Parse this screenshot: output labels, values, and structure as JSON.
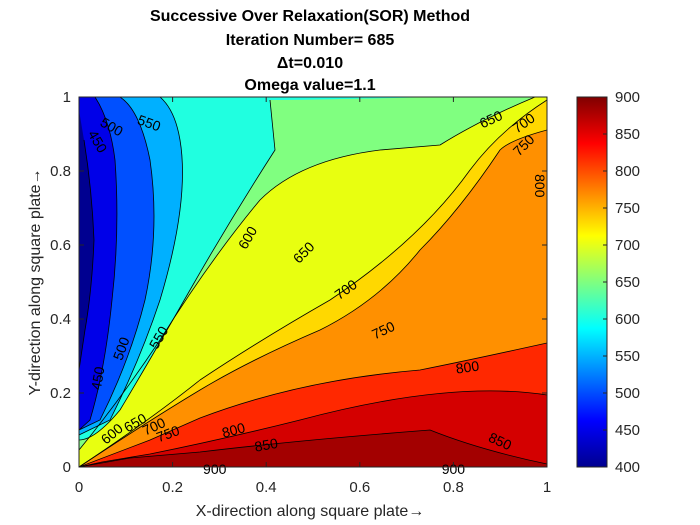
{
  "chart_data": {
    "type": "contourf",
    "title_lines": [
      "Successive Over Relaxation(SOR) Method",
      "Iteration Number= 685",
      "Δt=0.010",
      "Omega value=1.1"
    ],
    "xlabel": "X-direction along square plate→",
    "ylabel": "Y-direction along square plate→",
    "xlim": [
      0,
      1
    ],
    "ylim": [
      0,
      1
    ],
    "xticks": [
      "0",
      "0.2",
      "0.4",
      "0.6",
      "0.8",
      "1"
    ],
    "yticks": [
      "0",
      "0.2",
      "0.4",
      "0.6",
      "0.8",
      "1"
    ],
    "grid": false,
    "colorbar": {
      "range": [
        400,
        900
      ],
      "ticks": [
        "400",
        "450",
        "500",
        "550",
        "600",
        "650",
        "700",
        "750",
        "800",
        "850",
        "900"
      ],
      "colormap": "jet"
    },
    "contour_levels": [
      450,
      500,
      550,
      600,
      650,
      700,
      750,
      800,
      850,
      900
    ],
    "contour_labels": [
      {
        "text": "450",
        "x": 0.04,
        "y": 0.88,
        "rot": 60
      },
      {
        "text": "500",
        "x": 0.07,
        "y": 0.92,
        "rot": 30
      },
      {
        "text": "550",
        "x": 0.15,
        "y": 0.93,
        "rot": 20
      },
      {
        "text": "600",
        "x": 0.36,
        "y": 0.62,
        "rot": -60
      },
      {
        "text": "650",
        "x": 0.48,
        "y": 0.58,
        "rot": -45
      },
      {
        "text": "700",
        "x": 0.57,
        "y": 0.48,
        "rot": -35
      },
      {
        "text": "750",
        "x": 0.65,
        "y": 0.37,
        "rot": -25
      },
      {
        "text": "650",
        "x": 0.88,
        "y": 0.94,
        "rot": -25
      },
      {
        "text": "700",
        "x": 0.95,
        "y": 0.93,
        "rot": -35
      },
      {
        "text": "750",
        "x": 0.95,
        "y": 0.87,
        "rot": -45
      },
      {
        "text": "800",
        "x": 0.985,
        "y": 0.76,
        "rot": 90
      },
      {
        "text": "500",
        "x": 0.09,
        "y": 0.32,
        "rot": -70
      },
      {
        "text": "550",
        "x": 0.17,
        "y": 0.35,
        "rot": -60
      },
      {
        "text": "450",
        "x": 0.04,
        "y": 0.24,
        "rot": -80
      },
      {
        "text": "600",
        "x": 0.07,
        "y": 0.09,
        "rot": -40
      },
      {
        "text": "650",
        "x": 0.12,
        "y": 0.12,
        "rot": -30
      },
      {
        "text": "700",
        "x": 0.16,
        "y": 0.11,
        "rot": -25
      },
      {
        "text": "750",
        "x": 0.19,
        "y": 0.09,
        "rot": -20
      },
      {
        "text": "800",
        "x": 0.33,
        "y": 0.1,
        "rot": -15
      },
      {
        "text": "850",
        "x": 0.4,
        "y": 0.06,
        "rot": -10
      },
      {
        "text": "800",
        "x": 0.83,
        "y": 0.27,
        "rot": -8
      },
      {
        "text": "850",
        "x": 0.9,
        "y": 0.07,
        "rot": 25
      },
      {
        "text": "900",
        "x": 0.29,
        "y": -0.005,
        "rot": 0
      },
      {
        "text": "900",
        "x": 0.8,
        "y": -0.005,
        "rot": 0
      }
    ]
  }
}
